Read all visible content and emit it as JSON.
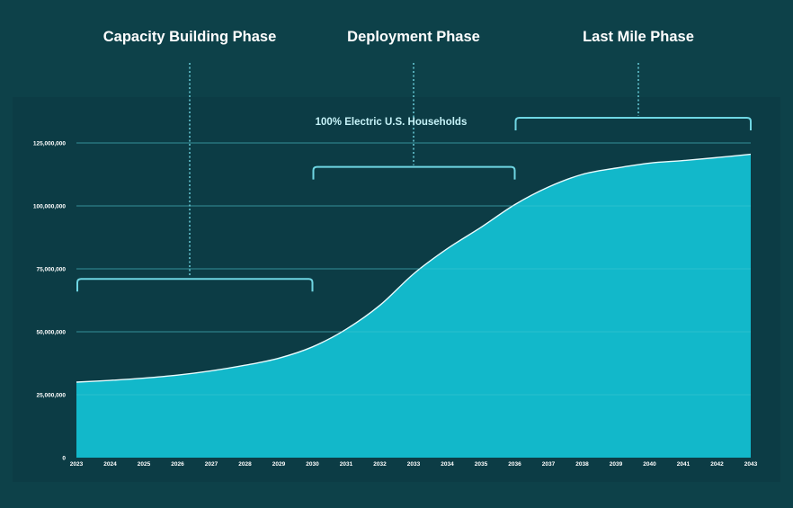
{
  "chart_data": {
    "type": "area",
    "title": "",
    "xlabel": "",
    "ylabel": "",
    "x": [
      "2023",
      "2024",
      "2025",
      "2026",
      "2027",
      "2028",
      "2029",
      "2030",
      "2031",
      "2032",
      "2033",
      "2034",
      "2035",
      "2036",
      "2037",
      "2038",
      "2039",
      "2040",
      "2041",
      "2042",
      "2043"
    ],
    "series": [
      {
        "values": [
          30000000,
          30700000,
          31600000,
          32800000,
          34500000,
          36700000,
          39500000,
          44000000,
          51000000,
          60500000,
          73000000,
          83000000,
          91500000,
          100500000,
          107500000,
          112500000,
          115000000,
          117000000,
          118000000,
          119200000,
          120500000
        ]
      }
    ],
    "ylim": [
      0,
      125000000
    ],
    "yticks": [
      0,
      25000000,
      50000000,
      75000000,
      100000000,
      125000000
    ],
    "ytick_labels": [
      "0",
      "25,000,000",
      "50,000,000",
      "75,000,000",
      "100,000,000",
      "125,000,000"
    ],
    "grid": true,
    "colors": {
      "fill": "#12b8ca",
      "line": "#e8fbfd",
      "grid": "#1f6f79",
      "bracket": "#6fd6e3",
      "background": "#0d4149",
      "panel": "#0c3c45"
    },
    "phases": [
      {
        "label": "Capacity Building Phase",
        "start": "2023",
        "end": "2030",
        "level": 71000000
      },
      {
        "label": "Deployment Phase",
        "start": "2030",
        "end": "2036",
        "level": 115500000
      },
      {
        "label": "Last Mile Phase",
        "start": "2036",
        "end": "2043",
        "level": 135000000
      }
    ],
    "annotation": "100% Electric U.S. Households"
  }
}
